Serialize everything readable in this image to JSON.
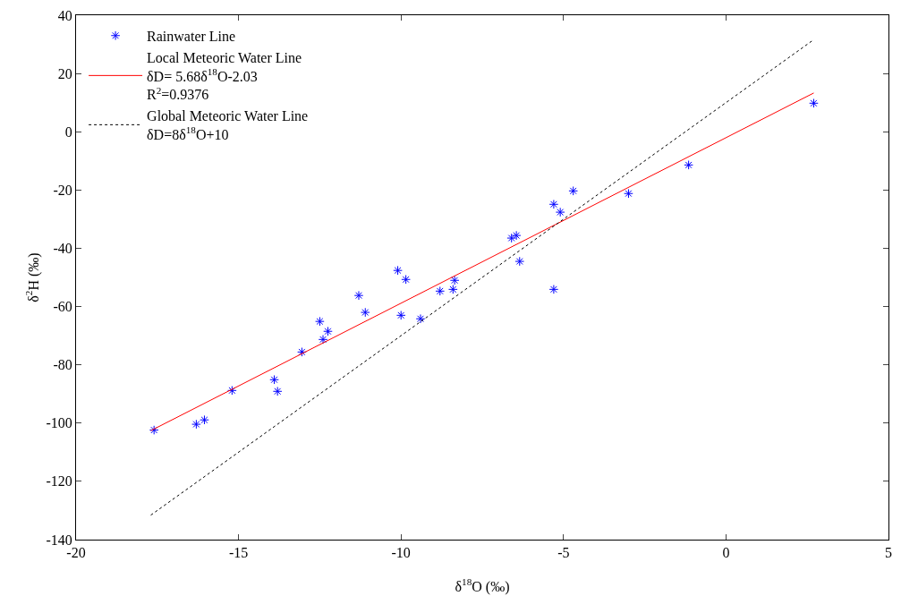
{
  "chart_data": {
    "type": "scatter",
    "xlabel": "δ$^{18}$O (‰)",
    "ylabel": "δ$^{2}$H (‰)",
    "xlim": [
      -20,
      5
    ],
    "ylim": [
      -140,
      40
    ],
    "xticks": [
      -20,
      -15,
      -10,
      -5,
      0,
      5
    ],
    "yticks": [
      -140,
      -120,
      -100,
      -80,
      -60,
      -40,
      -20,
      0,
      20,
      40
    ],
    "grid": false,
    "legend": "top left",
    "series": [
      {
        "name": "Rainwater Line",
        "type": "scatter",
        "marker": "cross",
        "color": "#0000ff",
        "x": [
          -17.6,
          -16.3,
          -16.05,
          -15.2,
          -13.9,
          -13.8,
          -13.05,
          -12.5,
          -12.4,
          -12.25,
          -11.3,
          -11.1,
          -10.1,
          -10.0,
          -9.85,
          -9.4,
          -8.8,
          -8.4,
          -8.35,
          -6.6,
          -6.45,
          -6.35,
          -5.3,
          -5.3,
          -5.1,
          -4.7,
          -3.0,
          -1.15,
          2.7
        ],
        "values": [
          -102.4,
          -100.4,
          -98.9,
          -88.8,
          -85.1,
          -89.1,
          -75.6,
          -65.1,
          -71.3,
          -68.5,
          -56.2,
          -62.0,
          -47.6,
          -63.0,
          -50.7,
          -64.2,
          -54.7,
          -54.1,
          -51.0,
          -36.5,
          -35.6,
          -44.5,
          -24.9,
          -54.1,
          -27.6,
          -20.3,
          -21.2,
          -11.4,
          9.8
        ]
      },
      {
        "name": "Local Meteoric Water Line\nδD= 5.68δ$^{18}$O-2.03\nR$^{2}$=0.9376",
        "type": "line",
        "marker": "none",
        "line_style": "solid",
        "color": "#ff0000",
        "x": [
          -17.7,
          2.7
        ],
        "values": [
          -102.6,
          13.3
        ]
      },
      {
        "name": "Global Meteoric Water Line\nδD=8δ$^{18}$O+10",
        "type": "line",
        "marker": "none",
        "line_style": "dotted",
        "color": "#000000",
        "x": [
          -17.7,
          2.7
        ],
        "values": [
          -131.6,
          31.6
        ]
      }
    ]
  }
}
